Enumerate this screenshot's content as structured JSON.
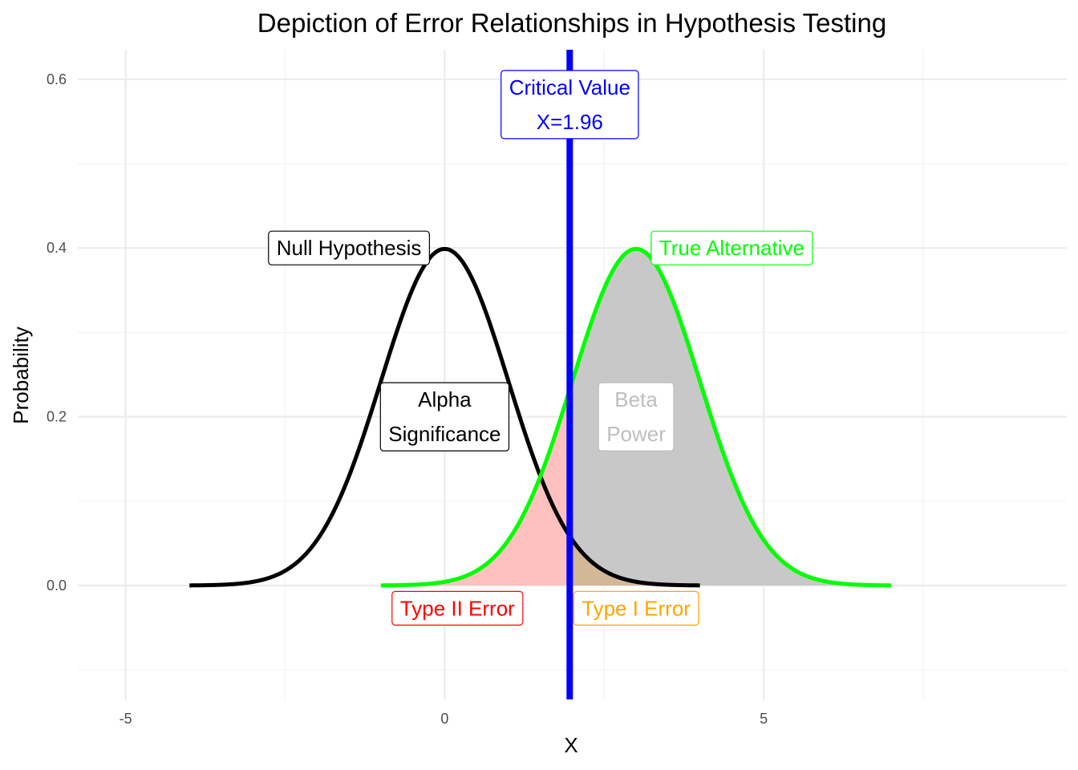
{
  "chart_data": {
    "type": "area",
    "title": "Depiction of Error Relationships in Hypothesis Testing",
    "xlabel": "X",
    "ylabel": "Probability",
    "xlim": [
      -5.75,
      9.75
    ],
    "ylim": [
      -0.135,
      0.635
    ],
    "x_ticks": [
      {
        "value": -5,
        "label": "-5"
      },
      {
        "value": 0,
        "label": "0"
      },
      {
        "value": 5,
        "label": "5"
      }
    ],
    "y_ticks": [
      {
        "value": 0.0,
        "label": "0.0"
      },
      {
        "value": 0.2,
        "label": "0.2"
      },
      {
        "value": 0.4,
        "label": "0.4"
      },
      {
        "value": 0.6,
        "label": "0.6"
      }
    ],
    "x_minor_gridlines": [
      -2.5,
      2.5,
      7.5
    ],
    "y_minor_gridlines": [
      -0.1,
      0.1,
      0.3,
      0.5
    ],
    "grid": true,
    "series": [
      {
        "key": "null",
        "mean": 0,
        "sd": 1,
        "x_range": [
          -4,
          4
        ],
        "color": "#000000"
      },
      {
        "key": "alt",
        "mean": 3,
        "sd": 1,
        "x_range": [
          -1,
          7
        ],
        "color": "#00ff00"
      }
    ],
    "shaded_regions": [
      {
        "key": "type2",
        "curve": "alt",
        "x_range": [
          -1,
          1.96
        ],
        "color": "#ffc0c0"
      },
      {
        "key": "power",
        "curve": "alt",
        "x_range": [
          1.96,
          7
        ],
        "color": "#c8c8c8"
      },
      {
        "key": "type1",
        "curve": "null",
        "x_range": [
          1.96,
          4
        ],
        "color": "#d2b896"
      }
    ],
    "critical_value": {
      "x": 1.96,
      "color": "#0000ff"
    },
    "annotations": [
      {
        "key": "critical",
        "lines": [
          "Critical Value",
          "X=1.96"
        ],
        "x": 1.96,
        "y": 0.57,
        "color": "#0000ff"
      },
      {
        "key": "null-label",
        "lines": [
          "Null Hypothesis"
        ],
        "x": -1.5,
        "y": 0.4,
        "color": "#000000"
      },
      {
        "key": "alt-label",
        "lines": [
          "True Alternative"
        ],
        "x": 4.5,
        "y": 0.4,
        "color": "#00ff00"
      },
      {
        "key": "alpha",
        "lines": [
          "Alpha",
          "Significance"
        ],
        "x": 0,
        "y": 0.2,
        "color": "#000000"
      },
      {
        "key": "beta",
        "lines": [
          "Beta",
          "Power"
        ],
        "x": 3,
        "y": 0.2,
        "color": "#bebebe"
      },
      {
        "key": "type2-label",
        "lines": [
          "Type II Error"
        ],
        "x": 0.2,
        "y": -0.027,
        "color": "#ff0000"
      },
      {
        "key": "type1-label",
        "lines": [
          "Type I Error"
        ],
        "x": 3,
        "y": -0.027,
        "color": "#ffa500"
      }
    ]
  }
}
